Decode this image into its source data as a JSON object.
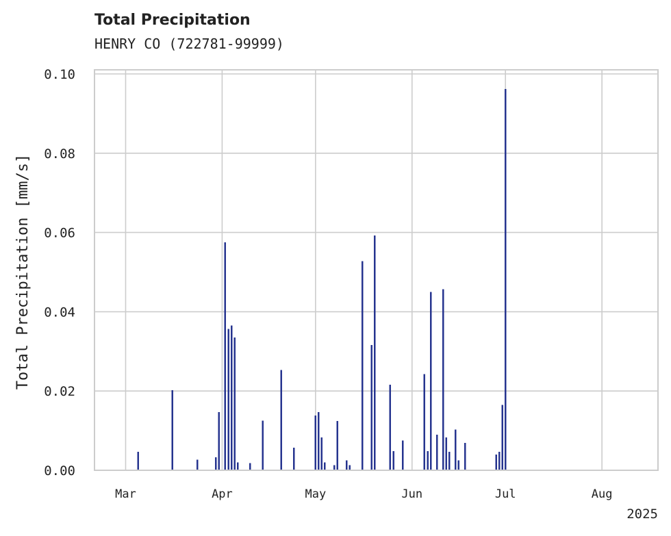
{
  "chart_data": {
    "type": "bar",
    "title": "Total Precipitation",
    "subtitle": "HENRY CO (722781-99999)",
    "ylabel": "Total Precipitation [mm/s]",
    "xlabel": "",
    "ylim": [
      0,
      0.1
    ],
    "yticks": [
      "0.00",
      "0.02",
      "0.04",
      "0.06",
      "0.08",
      "0.10"
    ],
    "xlim": [
      "2025-02-19",
      "2025-08-19"
    ],
    "xticks": [
      {
        "date": "2025-03-01",
        "label": "Mar"
      },
      {
        "date": "2025-04-01",
        "label": "Apr"
      },
      {
        "date": "2025-05-01",
        "label": "May"
      },
      {
        "date": "2025-06-01",
        "label": "Jun"
      },
      {
        "date": "2025-07-01",
        "label": "Jul"
      },
      {
        "date": "2025-08-01",
        "label": "Aug"
      }
    ],
    "year_label": "2025",
    "grid": true,
    "color": "#26348f",
    "x": [
      "2025-03-05",
      "2025-03-16",
      "2025-03-16",
      "2025-03-24",
      "2025-03-30",
      "2025-03-31",
      "2025-04-02",
      "2025-04-03",
      "2025-04-03",
      "2025-04-04",
      "2025-04-04",
      "2025-04-05",
      "2025-04-05",
      "2025-04-06",
      "2025-04-06",
      "2025-04-10",
      "2025-04-14",
      "2025-04-20",
      "2025-04-24",
      "2025-05-01",
      "2025-05-02",
      "2025-05-03",
      "2025-05-04",
      "2025-05-07",
      "2025-05-08",
      "2025-05-11",
      "2025-05-12",
      "2025-05-16",
      "2025-05-16",
      "2025-05-19",
      "2025-05-20",
      "2025-05-20",
      "2025-05-25",
      "2025-05-26",
      "2025-05-29",
      "2025-06-05",
      "2025-06-06",
      "2025-06-07",
      "2025-06-09",
      "2025-06-11",
      "2025-06-12",
      "2025-06-13",
      "2025-06-15",
      "2025-06-16",
      "2025-06-18",
      "2025-06-28",
      "2025-06-29",
      "2025-06-30",
      "2025-07-01"
    ],
    "values": [
      0.0047,
      0.019,
      0.0202,
      0.0027,
      0.0033,
      0.0147,
      0.0575,
      0.0357,
      0.0238,
      0.009,
      0.0365,
      0.0335,
      0.0215,
      0.002,
      0.002,
      0.0018,
      0.0125,
      0.0253,
      0.0057,
      0.0138,
      0.0147,
      0.0083,
      0.002,
      0.0013,
      0.0124,
      0.0025,
      0.0013,
      0.0293,
      0.0528,
      0.0316,
      0.0048,
      0.0592,
      0.0216,
      0.0048,
      0.0075,
      0.0243,
      0.0048,
      0.045,
      0.009,
      0.0457,
      0.0083,
      0.0047,
      0.0103,
      0.0025,
      0.0069,
      0.004,
      0.0047,
      0.0165,
      0.0962
    ]
  }
}
